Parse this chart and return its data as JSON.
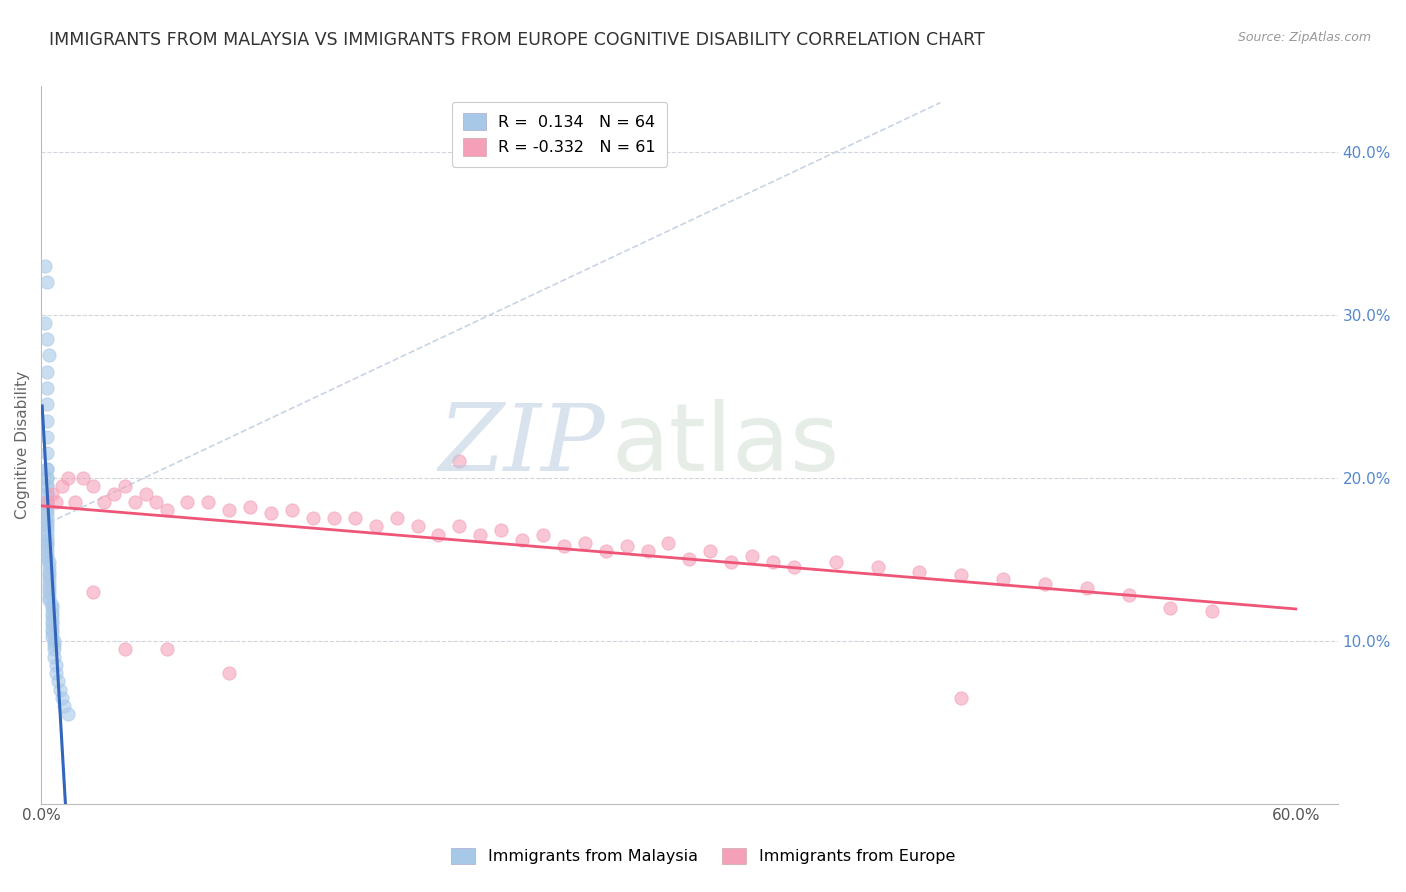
{
  "title": "IMMIGRANTS FROM MALAYSIA VS IMMIGRANTS FROM EUROPE COGNITIVE DISABILITY CORRELATION CHART",
  "source": "Source: ZipAtlas.com",
  "ylabel": "Cognitive Disability",
  "xlim": [
    0.0,
    0.62
  ],
  "ylim": [
    0.0,
    0.44
  ],
  "xticks": [
    0.0,
    0.1,
    0.2,
    0.3,
    0.4,
    0.5,
    0.6
  ],
  "xtick_labels": [
    "0.0%",
    "",
    "",
    "",
    "",
    "",
    "60.0%"
  ],
  "yticks_right": [
    0.1,
    0.2,
    0.3,
    0.4
  ],
  "ytick_labels_right": [
    "10.0%",
    "20.0%",
    "30.0%",
    "40.0%"
  ],
  "legend_r1": "R =  0.134   N = 64",
  "legend_r2": "R = -0.332   N = 61",
  "watermark_zip": "ZIP",
  "watermark_atlas": "atlas",
  "malaysia_color": "#a8c8e8",
  "europe_color": "#f4a0b8",
  "malaysia_trend_color": "#3366bb",
  "europe_trend_color": "#ee5577",
  "diag_color": "#c8d4e4",
  "scatter_alpha": 0.6,
  "scatter_size": 90,
  "malaysia_x": [
    0.002,
    0.003,
    0.002,
    0.003,
    0.004,
    0.003,
    0.003,
    0.003,
    0.003,
    0.003,
    0.003,
    0.003,
    0.003,
    0.003,
    0.003,
    0.003,
    0.003,
    0.003,
    0.003,
    0.003,
    0.003,
    0.003,
    0.003,
    0.003,
    0.003,
    0.003,
    0.003,
    0.003,
    0.003,
    0.003,
    0.004,
    0.004,
    0.004,
    0.004,
    0.004,
    0.004,
    0.004,
    0.004,
    0.004,
    0.004,
    0.005,
    0.005,
    0.005,
    0.005,
    0.005,
    0.005,
    0.005,
    0.005,
    0.005,
    0.006,
    0.006,
    0.006,
    0.006,
    0.007,
    0.007,
    0.008,
    0.009,
    0.01,
    0.011,
    0.013,
    0.003,
    0.003,
    0.003,
    0.003
  ],
  "malaysia_y": [
    0.33,
    0.32,
    0.295,
    0.285,
    0.275,
    0.265,
    0.255,
    0.245,
    0.235,
    0.225,
    0.215,
    0.205,
    0.2,
    0.195,
    0.19,
    0.185,
    0.183,
    0.18,
    0.178,
    0.175,
    0.172,
    0.17,
    0.168,
    0.165,
    0.162,
    0.16,
    0.158,
    0.155,
    0.152,
    0.15,
    0.148,
    0.145,
    0.142,
    0.14,
    0.138,
    0.135,
    0.132,
    0.13,
    0.127,
    0.125,
    0.122,
    0.12,
    0.117,
    0.115,
    0.112,
    0.11,
    0.107,
    0.105,
    0.102,
    0.1,
    0.097,
    0.095,
    0.09,
    0.085,
    0.08,
    0.075,
    0.07,
    0.065,
    0.06,
    0.055,
    0.19,
    0.195,
    0.2,
    0.205
  ],
  "europe_x": [
    0.003,
    0.005,
    0.007,
    0.01,
    0.013,
    0.016,
    0.02,
    0.025,
    0.03,
    0.035,
    0.04,
    0.045,
    0.05,
    0.055,
    0.06,
    0.07,
    0.08,
    0.09,
    0.1,
    0.11,
    0.12,
    0.13,
    0.14,
    0.15,
    0.16,
    0.17,
    0.18,
    0.19,
    0.2,
    0.21,
    0.22,
    0.23,
    0.24,
    0.25,
    0.26,
    0.27,
    0.28,
    0.29,
    0.3,
    0.31,
    0.32,
    0.33,
    0.34,
    0.35,
    0.36,
    0.38,
    0.4,
    0.42,
    0.44,
    0.46,
    0.48,
    0.5,
    0.52,
    0.54,
    0.56,
    0.025,
    0.04,
    0.06,
    0.09,
    0.2,
    0.44
  ],
  "europe_y": [
    0.185,
    0.19,
    0.185,
    0.195,
    0.2,
    0.185,
    0.2,
    0.195,
    0.185,
    0.19,
    0.195,
    0.185,
    0.19,
    0.185,
    0.18,
    0.185,
    0.185,
    0.18,
    0.182,
    0.178,
    0.18,
    0.175,
    0.175,
    0.175,
    0.17,
    0.175,
    0.17,
    0.165,
    0.17,
    0.165,
    0.168,
    0.162,
    0.165,
    0.158,
    0.16,
    0.155,
    0.158,
    0.155,
    0.16,
    0.15,
    0.155,
    0.148,
    0.152,
    0.148,
    0.145,
    0.148,
    0.145,
    0.142,
    0.14,
    0.138,
    0.135,
    0.132,
    0.128,
    0.12,
    0.118,
    0.13,
    0.095,
    0.095,
    0.08,
    0.21,
    0.065
  ],
  "background_color": "#ffffff",
  "grid_color": "#d0d5de",
  "title_fontsize": 12.5,
  "axis_label_fontsize": 11,
  "tick_fontsize": 11,
  "right_tick_color": "#5588cc"
}
